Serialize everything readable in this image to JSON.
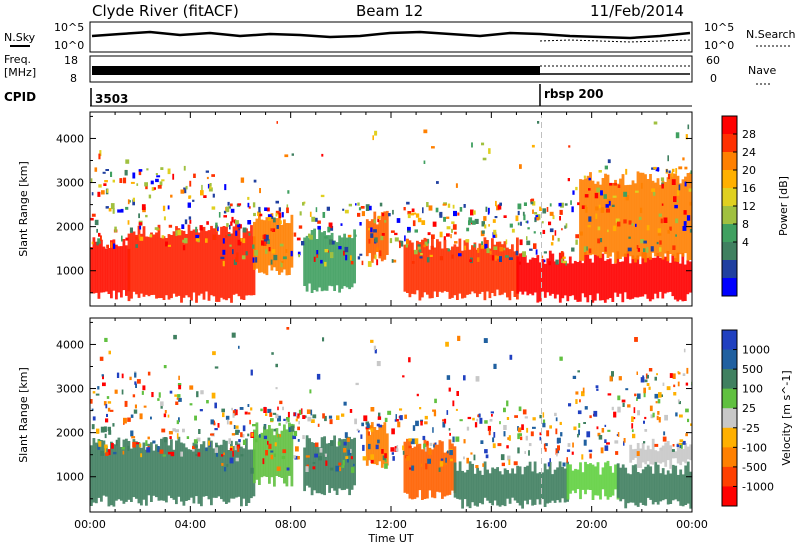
{
  "header": {
    "station": "Clyde River (fitACF)",
    "beam": "Beam 12",
    "date": "11/Feb/2014"
  },
  "strip": {
    "nsky_label": "N.Sky",
    "nsky_ticks": [
      "10^5",
      "10^0"
    ],
    "nsearch_label": "N.Search",
    "nsearch_ticks": [
      "10^5",
      "10^0"
    ],
    "freq_label_1": "Freq.",
    "freq_label_2": "[MHz]",
    "freq_ticks": [
      "18",
      "8"
    ],
    "nave_label": "Nave",
    "nave_ticks": [
      "60",
      "0"
    ],
    "cpid_label": "CPID",
    "cpid_segments": [
      {
        "label": "3503",
        "start_hour": 0
      },
      {
        "label": "rbsp 200",
        "start_hour": 18
      }
    ]
  },
  "chart_data": [
    {
      "type": "heatmap",
      "panel": "power",
      "xlabel": "",
      "ylabel": "Slant Range [km]",
      "xlim": [
        0,
        24
      ],
      "ylim": [
        200,
        4600
      ],
      "yticks": [
        "1000",
        "2000",
        "3000",
        "4000"
      ],
      "colorbar": {
        "label": "Power [dB]",
        "ticks": [
          "28",
          "24",
          "20",
          "16",
          "12",
          "8",
          "4"
        ],
        "colors": [
          "#ff0000",
          "#ff3000",
          "#ff8000",
          "#ffb000",
          "#e0d020",
          "#a0c040",
          "#40a060",
          "#408060",
          "#2040a0",
          "#0000ff"
        ]
      },
      "bands": [
        {
          "start_hour": 0.0,
          "end_hour": 1.5,
          "low_km": 450,
          "high_km": 1600,
          "color": "#ff1000"
        },
        {
          "start_hour": 1.5,
          "end_hour": 6.5,
          "low_km": 400,
          "high_km": 1900,
          "color": "#ff2000"
        },
        {
          "start_hour": 6.5,
          "end_hour": 8.0,
          "low_km": 1000,
          "high_km": 2200,
          "color": "#ff8000"
        },
        {
          "start_hour": 8.5,
          "end_hour": 10.5,
          "low_km": 600,
          "high_km": 1800,
          "color": "#40a060"
        },
        {
          "start_hour": 11.0,
          "end_hour": 11.8,
          "low_km": 1300,
          "high_km": 2200,
          "color": "#ff6000"
        },
        {
          "start_hour": 12.5,
          "end_hour": 17.0,
          "low_km": 450,
          "high_km": 1600,
          "color": "#ff3000"
        },
        {
          "start_hour": 17.0,
          "end_hour": 24.0,
          "low_km": 400,
          "high_km": 1300,
          "color": "#ff0000"
        },
        {
          "start_hour": 19.5,
          "end_hour": 24.0,
          "low_km": 1300,
          "high_km": 3100,
          "color": "#ff8000"
        }
      ]
    },
    {
      "type": "heatmap",
      "panel": "velocity",
      "xlabel": "Time UT",
      "ylabel": "Slant Range [km]",
      "xlim": [
        0,
        24
      ],
      "ylim": [
        200,
        4600
      ],
      "xticks": [
        "00:00",
        "04:00",
        "08:00",
        "12:00",
        "16:00",
        "20:00",
        "00:00"
      ],
      "yticks": [
        "1000",
        "2000",
        "3000",
        "4000"
      ],
      "colorbar": {
        "label": "Velocity [m s^-1]",
        "ticks": [
          "1000",
          "500",
          "100",
          "25",
          "-25",
          "-100",
          "-500",
          "-1000"
        ],
        "colors": [
          "#2040c0",
          "#2060a0",
          "#408060",
          "#60c040",
          "#c8c8c8",
          "#ffb000",
          "#ff8000",
          "#ff4000",
          "#ff0000"
        ]
      },
      "bands": [
        {
          "start_hour": 0.0,
          "end_hour": 6.5,
          "low_km": 450,
          "high_km": 1750,
          "color": "#408060"
        },
        {
          "start_hour": 6.5,
          "end_hour": 8.0,
          "low_km": 900,
          "high_km": 2100,
          "color": "#60c040"
        },
        {
          "start_hour": 8.5,
          "end_hour": 10.5,
          "low_km": 700,
          "high_km": 1800,
          "color": "#408060"
        },
        {
          "start_hour": 11.0,
          "end_hour": 11.8,
          "low_km": 1300,
          "high_km": 2100,
          "color": "#ff8000"
        },
        {
          "start_hour": 12.5,
          "end_hour": 14.5,
          "low_km": 600,
          "high_km": 1700,
          "color": "#ff6000"
        },
        {
          "start_hour": 14.5,
          "end_hour": 19.0,
          "low_km": 400,
          "high_km": 1200,
          "color": "#408060"
        },
        {
          "start_hour": 19.0,
          "end_hour": 21.0,
          "low_km": 600,
          "high_km": 1200,
          "color": "#60d040"
        },
        {
          "start_hour": 21.0,
          "end_hour": 24.0,
          "low_km": 400,
          "high_km": 1200,
          "color": "#408060"
        },
        {
          "start_hour": 21.5,
          "end_hour": 24.0,
          "low_km": 1300,
          "high_km": 1700,
          "color": "#c8c8c8"
        }
      ]
    }
  ]
}
